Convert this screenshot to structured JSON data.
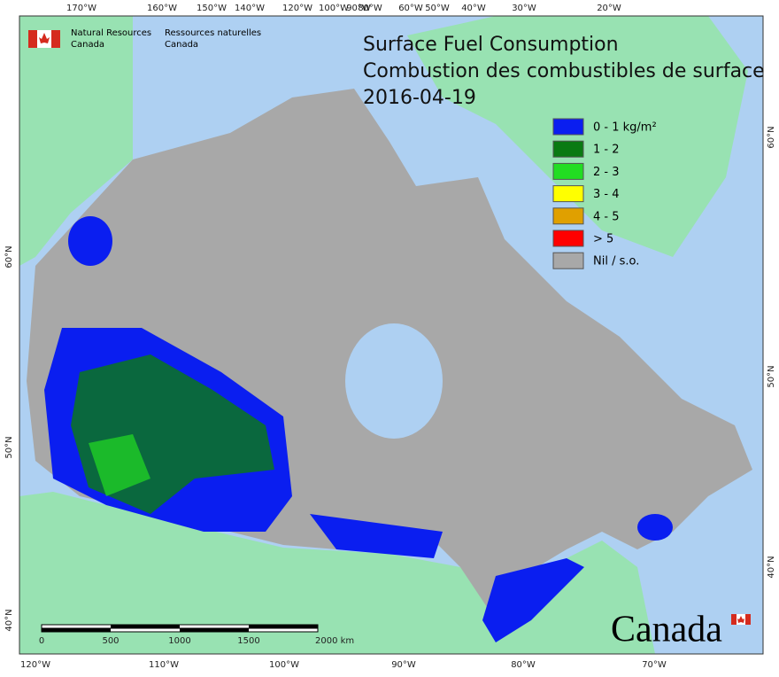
{
  "header": {
    "agency_en": [
      "Natural Resources",
      "Canada"
    ],
    "agency_fr": [
      "Ressources naturelles",
      "Canada"
    ]
  },
  "title": "Surface Fuel Consumption",
  "subtitle": "Combustion des combustibles de surface",
  "date": "2016-04-19",
  "legend": [
    {
      "label": "0 - 1 kg/m²",
      "color": "#0a1ef0"
    },
    {
      "label": "1 - 2",
      "color": "#0a7a12"
    },
    {
      "label": "2 - 3",
      "color": "#22dd22"
    },
    {
      "label": "3 - 4",
      "color": "#ffff00"
    },
    {
      "label": "4 - 5",
      "color": "#e0a000"
    },
    {
      "label": "> 5",
      "color": "#ff0000"
    },
    {
      "label": "Nil / s.o.",
      "color": "#a8a8a8"
    }
  ],
  "graticule": {
    "top": [
      "170°W",
      "160°W",
      "150°W",
      "140°W",
      "120°W",
      "100°W",
      "90°W",
      "80°W",
      "60°W",
      "50°W",
      "40°W",
      "30°W",
      "20°W"
    ],
    "bottom": [
      "120°W",
      "110°W",
      "100°W",
      "90°W",
      "80°W",
      "70°W"
    ],
    "left": [
      "60°N",
      "50°N",
      "40°N"
    ],
    "right": [
      "60°N",
      "50°N",
      "40°N"
    ]
  },
  "scale_bar": [
    "0",
    "500",
    "1000",
    "1500",
    "2000 km"
  ],
  "wordmark": "Canada"
}
